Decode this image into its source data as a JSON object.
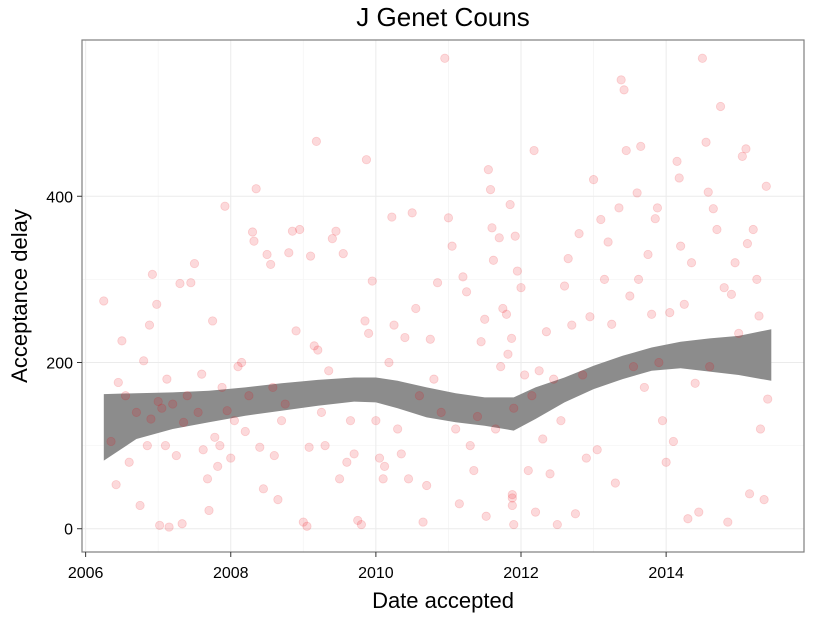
{
  "chart_data": {
    "type": "scatter",
    "title": "J Genet Couns",
    "xlabel": "Date accepted",
    "ylabel": "Acceptance delay",
    "xlim": [
      2005.95,
      2015.9
    ],
    "ylim": [
      -28,
      588
    ],
    "x_ticks": [
      2006,
      2008,
      2010,
      2012,
      2014
    ],
    "y_ticks": [
      0,
      200,
      400
    ],
    "grid": true,
    "colors": {
      "point": "#e8000b",
      "band": "#8c8c8c",
      "grid_major": "#ebebeb",
      "grid_minor": "#f5f5f5",
      "panel_border": "#7f7f7f"
    },
    "points": [
      [
        2006.25,
        274
      ],
      [
        2006.35,
        105
      ],
      [
        2006.42,
        53
      ],
      [
        2006.45,
        176
      ],
      [
        2006.5,
        226
      ],
      [
        2006.55,
        160
      ],
      [
        2006.6,
        80
      ],
      [
        2006.7,
        140
      ],
      [
        2006.75,
        28
      ],
      [
        2006.8,
        202
      ],
      [
        2006.85,
        100
      ],
      [
        2006.88,
        245
      ],
      [
        2006.9,
        132
      ],
      [
        2006.92,
        306
      ],
      [
        2006.98,
        270
      ],
      [
        2007.0,
        153
      ],
      [
        2007.02,
        4
      ],
      [
        2007.05,
        145
      ],
      [
        2007.1,
        100
      ],
      [
        2007.12,
        180
      ],
      [
        2007.15,
        2
      ],
      [
        2007.2,
        150
      ],
      [
        2007.25,
        88
      ],
      [
        2007.3,
        295
      ],
      [
        2007.33,
        6
      ],
      [
        2007.35,
        128
      ],
      [
        2007.4,
        160
      ],
      [
        2007.45,
        296
      ],
      [
        2007.5,
        319
      ],
      [
        2007.55,
        140
      ],
      [
        2007.6,
        186
      ],
      [
        2007.62,
        95
      ],
      [
        2007.68,
        60
      ],
      [
        2007.7,
        22
      ],
      [
        2007.75,
        250
      ],
      [
        2007.78,
        110
      ],
      [
        2007.82,
        75
      ],
      [
        2007.85,
        100
      ],
      [
        2007.88,
        170
      ],
      [
        2007.92,
        388
      ],
      [
        2007.95,
        142
      ],
      [
        2008.0,
        85
      ],
      [
        2008.05,
        130
      ],
      [
        2008.1,
        195
      ],
      [
        2008.15,
        200
      ],
      [
        2008.2,
        117
      ],
      [
        2008.25,
        160
      ],
      [
        2008.3,
        357
      ],
      [
        2008.32,
        346
      ],
      [
        2008.35,
        409
      ],
      [
        2008.4,
        98
      ],
      [
        2008.45,
        48
      ],
      [
        2008.5,
        330
      ],
      [
        2008.55,
        318
      ],
      [
        2008.58,
        170
      ],
      [
        2008.6,
        88
      ],
      [
        2008.65,
        35
      ],
      [
        2008.7,
        130
      ],
      [
        2008.75,
        150
      ],
      [
        2008.8,
        332
      ],
      [
        2008.85,
        358
      ],
      [
        2008.9,
        238
      ],
      [
        2008.95,
        360
      ],
      [
        2009.0,
        8
      ],
      [
        2009.05,
        3
      ],
      [
        2009.08,
        98
      ],
      [
        2009.1,
        328
      ],
      [
        2009.15,
        220
      ],
      [
        2009.18,
        466
      ],
      [
        2009.2,
        215
      ],
      [
        2009.25,
        140
      ],
      [
        2009.3,
        100
      ],
      [
        2009.35,
        190
      ],
      [
        2009.4,
        349
      ],
      [
        2009.45,
        358
      ],
      [
        2009.5,
        60
      ],
      [
        2009.55,
        331
      ],
      [
        2009.6,
        80
      ],
      [
        2009.65,
        130
      ],
      [
        2009.7,
        90
      ],
      [
        2009.75,
        10
      ],
      [
        2009.8,
        5
      ],
      [
        2009.85,
        250
      ],
      [
        2009.87,
        444
      ],
      [
        2009.9,
        235
      ],
      [
        2009.95,
        298
      ],
      [
        2010.0,
        130
      ],
      [
        2010.05,
        85
      ],
      [
        2010.1,
        60
      ],
      [
        2010.12,
        75
      ],
      [
        2010.18,
        200
      ],
      [
        2010.22,
        375
      ],
      [
        2010.25,
        245
      ],
      [
        2010.3,
        120
      ],
      [
        2010.35,
        90
      ],
      [
        2010.4,
        230
      ],
      [
        2010.45,
        60
      ],
      [
        2010.5,
        380
      ],
      [
        2010.55,
        265
      ],
      [
        2010.6,
        160
      ],
      [
        2010.65,
        8
      ],
      [
        2010.7,
        52
      ],
      [
        2010.75,
        228
      ],
      [
        2010.8,
        180
      ],
      [
        2010.85,
        296
      ],
      [
        2010.9,
        140
      ],
      [
        2010.95,
        566
      ],
      [
        2011.0,
        374
      ],
      [
        2011.05,
        340
      ],
      [
        2011.1,
        120
      ],
      [
        2011.15,
        30
      ],
      [
        2011.2,
        303
      ],
      [
        2011.25,
        285
      ],
      [
        2011.3,
        100
      ],
      [
        2011.35,
        70
      ],
      [
        2011.4,
        135
      ],
      [
        2011.45,
        225
      ],
      [
        2011.5,
        252
      ],
      [
        2011.52,
        15
      ],
      [
        2011.55,
        432
      ],
      [
        2011.58,
        408
      ],
      [
        2011.6,
        362
      ],
      [
        2011.62,
        323
      ],
      [
        2011.65,
        120
      ],
      [
        2011.7,
        350
      ],
      [
        2011.72,
        195
      ],
      [
        2011.75,
        265
      ],
      [
        2011.8,
        258
      ],
      [
        2011.82,
        210
      ],
      [
        2011.85,
        390
      ],
      [
        2011.87,
        229
      ],
      [
        2011.88,
        41
      ],
      [
        2011.88,
        37
      ],
      [
        2011.88,
        28
      ],
      [
        2011.9,
        145
      ],
      [
        2011.9,
        5
      ],
      [
        2011.92,
        352
      ],
      [
        2011.95,
        310
      ],
      [
        2012.0,
        290
      ],
      [
        2012.05,
        185
      ],
      [
        2012.1,
        70
      ],
      [
        2012.15,
        160
      ],
      [
        2012.18,
        455
      ],
      [
        2012.2,
        20
      ],
      [
        2012.25,
        190
      ],
      [
        2012.3,
        108
      ],
      [
        2012.35,
        237
      ],
      [
        2012.4,
        66
      ],
      [
        2012.45,
        180
      ],
      [
        2012.5,
        5
      ],
      [
        2012.55,
        130
      ],
      [
        2012.6,
        292
      ],
      [
        2012.65,
        325
      ],
      [
        2012.7,
        245
      ],
      [
        2012.75,
        18
      ],
      [
        2012.8,
        355
      ],
      [
        2012.85,
        185
      ],
      [
        2012.9,
        85
      ],
      [
        2012.95,
        255
      ],
      [
        2013.0,
        420
      ],
      [
        2013.05,
        95
      ],
      [
        2013.1,
        372
      ],
      [
        2013.15,
        300
      ],
      [
        2013.2,
        345
      ],
      [
        2013.25,
        246
      ],
      [
        2013.3,
        55
      ],
      [
        2013.35,
        386
      ],
      [
        2013.38,
        540
      ],
      [
        2013.42,
        528
      ],
      [
        2013.45,
        455
      ],
      [
        2013.5,
        280
      ],
      [
        2013.55,
        195
      ],
      [
        2013.6,
        404
      ],
      [
        2013.62,
        300
      ],
      [
        2013.65,
        460
      ],
      [
        2013.7,
        170
      ],
      [
        2013.75,
        330
      ],
      [
        2013.8,
        258
      ],
      [
        2013.85,
        373
      ],
      [
        2013.88,
        386
      ],
      [
        2013.9,
        200
      ],
      [
        2013.95,
        130
      ],
      [
        2014.0,
        80
      ],
      [
        2014.05,
        260
      ],
      [
        2014.1,
        105
      ],
      [
        2014.15,
        442
      ],
      [
        2014.18,
        422
      ],
      [
        2014.2,
        340
      ],
      [
        2014.25,
        270
      ],
      [
        2014.3,
        12
      ],
      [
        2014.35,
        320
      ],
      [
        2014.4,
        175
      ],
      [
        2014.45,
        20
      ],
      [
        2014.5,
        566
      ],
      [
        2014.55,
        465
      ],
      [
        2014.58,
        405
      ],
      [
        2014.6,
        195
      ],
      [
        2014.65,
        385
      ],
      [
        2014.7,
        360
      ],
      [
        2014.75,
        508
      ],
      [
        2014.8,
        290
      ],
      [
        2014.85,
        8
      ],
      [
        2014.9,
        282
      ],
      [
        2014.95,
        320
      ],
      [
        2015.0,
        235
      ],
      [
        2015.05,
        448
      ],
      [
        2015.1,
        457
      ],
      [
        2015.12,
        343
      ],
      [
        2015.15,
        42
      ],
      [
        2015.2,
        360
      ],
      [
        2015.25,
        300
      ],
      [
        2015.28,
        256
      ],
      [
        2015.3,
        120
      ],
      [
        2015.35,
        35
      ],
      [
        2015.38,
        412
      ],
      [
        2015.4,
        156
      ]
    ],
    "smooth_band": {
      "x": [
        2006.25,
        2006.7,
        2007.2,
        2007.7,
        2008.2,
        2008.7,
        2009.2,
        2009.7,
        2010.0,
        2010.3,
        2010.7,
        2011.1,
        2011.5,
        2011.9,
        2012.2,
        2012.6,
        2013.0,
        2013.4,
        2013.8,
        2014.2,
        2014.6,
        2015.0,
        2015.45
      ],
      "lower": [
        82,
        108,
        120,
        128,
        136,
        142,
        148,
        153,
        152,
        145,
        134,
        128,
        124,
        118,
        132,
        152,
        168,
        180,
        190,
        193,
        189,
        185,
        178
      ],
      "upper": [
        162,
        163,
        164,
        166,
        170,
        175,
        179,
        182,
        182,
        178,
        170,
        163,
        158,
        158,
        170,
        182,
        196,
        208,
        218,
        225,
        229,
        232,
        240
      ]
    }
  }
}
